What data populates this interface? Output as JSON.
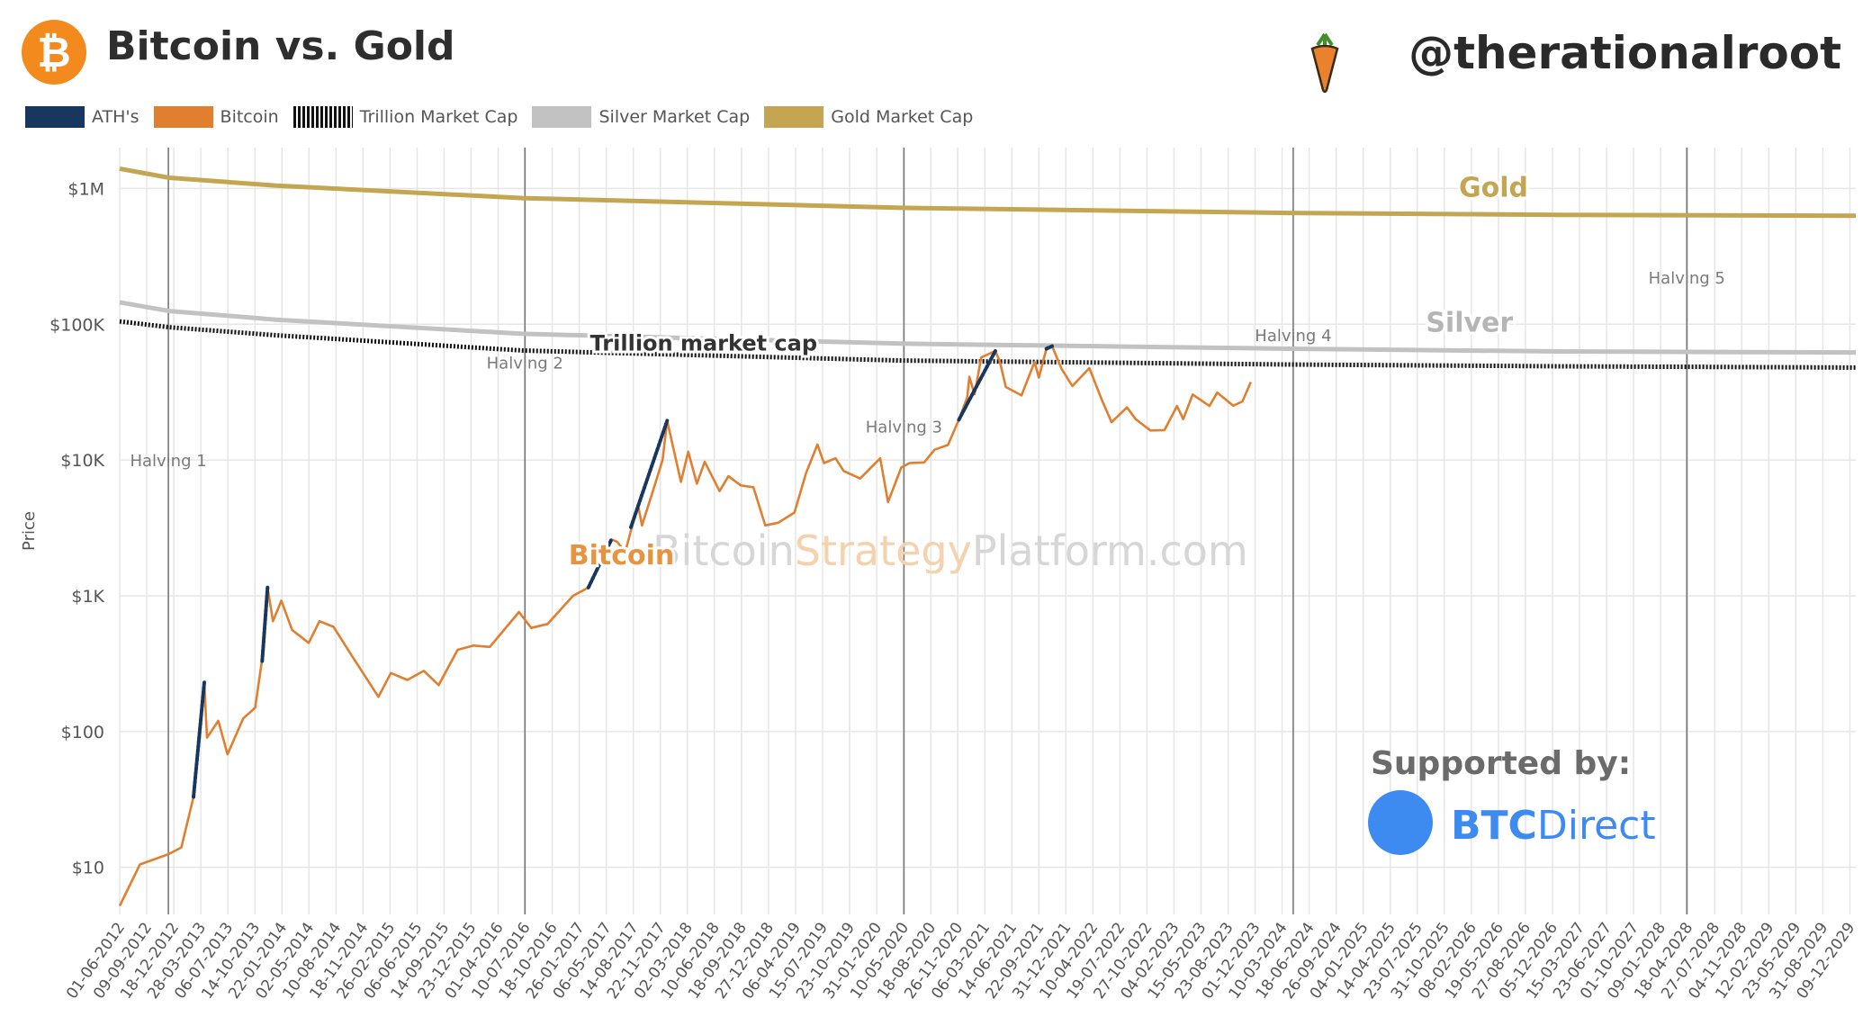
{
  "header": {
    "logo_glyph": "₿",
    "title": "Bitcoin vs. Gold",
    "handle": "@therationalroot",
    "handle_icon": "carrot-icon"
  },
  "legend": [
    {
      "label": "ATH's",
      "color": "#17375e",
      "style": "solid"
    },
    {
      "label": "Bitcoin",
      "color": "#e07f2f",
      "style": "solid"
    },
    {
      "label": "Trillion Market Cap",
      "color": "#111111",
      "style": "dotted"
    },
    {
      "label": "Silver Market Cap",
      "color": "#c2c2c2",
      "style": "solid"
    },
    {
      "label": "Gold Market Cap",
      "color": "#c4a552",
      "style": "solid"
    }
  ],
  "sponsor": {
    "label": "Supported by:",
    "brand_bold": "BTC",
    "brand_rest": "Direct",
    "color": "#3d8af0"
  },
  "chart_data": {
    "type": "line",
    "title": "Bitcoin vs. Gold",
    "ylabel": "Price",
    "yscale": "log",
    "ylim": [
      4.5,
      2000000
    ],
    "xlim": [
      "2012-06-01",
      "2029-12-31"
    ],
    "yticks": [
      10,
      100,
      1000,
      10000,
      100000,
      1000000
    ],
    "ytick_labels": [
      "$10",
      "$100",
      "$1K",
      "$10K",
      "$100K",
      "$1M"
    ],
    "xtick_labels": [
      "01-06-2012",
      "09-09-2012",
      "18-12-2012",
      "28-03-2013",
      "06-07-2013",
      "14-10-2013",
      "22-01-2014",
      "02-05-2014",
      "10-08-2014",
      "18-11-2014",
      "26-02-2015",
      "06-06-2015",
      "14-09-2015",
      "23-12-2015",
      "01-04-2016",
      "10-07-2016",
      "18-10-2016",
      "26-01-2017",
      "06-05-2017",
      "14-08-2017",
      "22-11-2017",
      "02-03-2018",
      "10-06-2018",
      "18-09-2018",
      "27-12-2018",
      "06-04-2019",
      "15-07-2019",
      "23-10-2019",
      "31-01-2020",
      "10-05-2020",
      "18-08-2020",
      "26-11-2020",
      "06-03-2021",
      "14-06-2021",
      "22-09-2021",
      "31-12-2021",
      "10-04-2022",
      "19-07-2022",
      "27-10-2022",
      "04-02-2023",
      "15-05-2023",
      "23-08-2023",
      "01-12-2023",
      "10-03-2024",
      "18-06-2024",
      "26-09-2024",
      "04-01-2025",
      "14-04-2025",
      "23-07-2025",
      "31-10-2025",
      "08-02-2026",
      "19-05-2026",
      "27-08-2026",
      "05-12-2026",
      "15-03-2027",
      "23-06-2027",
      "01-10-2027",
      "09-01-2028",
      "18-04-2028",
      "27-07-2028",
      "04-11-2028",
      "12-02-2029",
      "23-05-2029",
      "31-08-2029",
      "09-12-2029"
    ],
    "grid": true,
    "legend_position": "top-left",
    "halvings": [
      {
        "label": "Halving 1",
        "date": "2012-11-28"
      },
      {
        "label": "Halving 2",
        "date": "2016-07-09"
      },
      {
        "label": "Halving 3",
        "date": "2020-05-11"
      },
      {
        "label": "Halving 4",
        "date": "2024-04-20"
      },
      {
        "label": "Halving 5",
        "date": "2028-04-15"
      }
    ],
    "annotations": [
      {
        "label": "Gold",
        "series": "Gold Market Cap"
      },
      {
        "label": "Silver",
        "series": "Silver Market Cap"
      },
      {
        "label": "Trillion market cap",
        "series": "Trillion Market Cap"
      },
      {
        "label": "Bitcoin",
        "series": "Bitcoin"
      }
    ],
    "watermark": [
      "Bitcoin",
      "Strategy",
      "Platform.com"
    ],
    "series": [
      {
        "name": "Gold Market Cap",
        "color": "#c4a552",
        "x": [
          "2012-06-01",
          "2012-12-01",
          "2014-01-01",
          "2016-07-01",
          "2020-05-01",
          "2024-04-01",
          "2027-01-01",
          "2029-12-31"
        ],
        "y": [
          1400000,
          1200000,
          1050000,
          850000,
          720000,
          660000,
          640000,
          630000
        ]
      },
      {
        "name": "Silver Market Cap",
        "color": "#c2c2c2",
        "x": [
          "2012-06-01",
          "2012-12-01",
          "2014-01-01",
          "2016-07-01",
          "2020-05-01",
          "2024-04-01",
          "2027-01-01",
          "2029-12-31"
        ],
        "y": [
          145000,
          125000,
          108000,
          85000,
          72000,
          66000,
          63000,
          62000
        ]
      },
      {
        "name": "Trillion Market Cap",
        "color": "#111111",
        "x": [
          "2012-06-01",
          "2012-12-01",
          "2014-01-01",
          "2016-07-01",
          "2020-05-01",
          "2024-04-01",
          "2027-01-01",
          "2029-12-31"
        ],
        "y": [
          105000,
          95000,
          83000,
          64000,
          54000,
          50500,
          49000,
          48000
        ]
      },
      {
        "name": "Bitcoin",
        "color": "#e07f2f",
        "x": [
          "2012-06-01",
          "2012-08-15",
          "2012-11-28",
          "2013-01-15",
          "2013-03-01",
          "2013-04-10",
          "2013-04-20",
          "2013-06-01",
          "2013-07-05",
          "2013-09-01",
          "2013-10-15",
          "2013-11-15",
          "2013-11-30",
          "2013-12-20",
          "2014-01-20",
          "2014-03-01",
          "2014-05-01",
          "2014-06-10",
          "2014-08-01",
          "2014-10-01",
          "2015-01-14",
          "2015-03-01",
          "2015-05-01",
          "2015-07-01",
          "2015-08-25",
          "2015-11-03",
          "2016-01-01",
          "2016-03-01",
          "2016-06-17",
          "2016-08-01",
          "2016-10-01",
          "2017-01-03",
          "2017-03-01",
          "2017-05-25",
          "2017-06-15",
          "2017-07-15",
          "2017-08-31",
          "2017-09-15",
          "2017-10-31",
          "2017-11-30",
          "2017-12-17",
          "2018-02-06",
          "2018-03-05",
          "2018-04-06",
          "2018-05-05",
          "2018-06-29",
          "2018-08-01",
          "2018-09-15",
          "2018-11-01",
          "2018-12-15",
          "2019-02-01",
          "2019-04-02",
          "2019-05-15",
          "2019-06-26",
          "2019-07-20",
          "2019-09-01",
          "2019-10-01",
          "2019-12-01",
          "2020-02-13",
          "2020-03-13",
          "2020-05-01",
          "2020-06-01",
          "2020-07-25",
          "2020-09-01",
          "2020-10-21",
          "2020-11-30",
          "2020-12-31",
          "2021-01-08",
          "2021-01-27",
          "2021-02-21",
          "2021-04-14",
          "2021-05-01",
          "2021-05-23",
          "2021-06-22",
          "2021-07-20",
          "2021-09-06",
          "2021-09-22",
          "2021-10-20",
          "2021-11-10",
          "2021-12-15",
          "2022-01-24",
          "2022-03-28",
          "2022-05-12",
          "2022-06-18",
          "2022-08-14",
          "2022-09-15",
          "2022-11-09",
          "2022-12-31",
          "2023-02-15",
          "2023-03-10",
          "2023-04-14",
          "2023-06-15",
          "2023-07-14",
          "2023-09-11",
          "2023-10-15",
          "2023-11-15"
        ],
        "y": [
          5.2,
          10.5,
          12.5,
          14,
          33,
          230,
          90,
          120,
          68,
          125,
          150,
          400,
          1150,
          650,
          920,
          560,
          450,
          650,
          590,
          380,
          180,
          270,
          240,
          280,
          220,
          400,
          430,
          420,
          760,
          580,
          620,
          1000,
          1150,
          2600,
          2500,
          2100,
          4700,
          3300,
          6400,
          10000,
          19500,
          6900,
          11500,
          6700,
          9700,
          5900,
          7600,
          6500,
          6300,
          3300,
          3450,
          4100,
          8000,
          13000,
          9500,
          10300,
          8300,
          7300,
          10300,
          4900,
          8800,
          9500,
          9600,
          11900,
          12900,
          19800,
          29000,
          41000,
          30500,
          57000,
          63500,
          53000,
          34500,
          32000,
          29900,
          52700,
          40500,
          66000,
          69000,
          47000,
          35000,
          47500,
          28000,
          19000,
          24400,
          20000,
          16500,
          16600,
          25000,
          20000,
          30400,
          25000,
          31400,
          25100,
          27000,
          37500
        ]
      },
      {
        "name": "ATH's",
        "color": "#17375e",
        "segments": [
          {
            "x": [
              "2013-03-01",
              "2013-04-10"
            ],
            "y": [
              33,
              230
            ]
          },
          {
            "x": [
              "2013-11-10",
              "2013-11-30"
            ],
            "y": [
              330,
              1150
            ]
          },
          {
            "x": [
              "2017-03-01",
              "2017-05-25"
            ],
            "y": [
              1150,
              2600
            ]
          },
          {
            "x": [
              "2017-08-05",
              "2017-12-17"
            ],
            "y": [
              3200,
              19500
            ]
          },
          {
            "x": [
              "2020-11-30",
              "2021-04-14"
            ],
            "y": [
              19800,
              63500
            ]
          },
          {
            "x": [
              "2021-10-20",
              "2021-11-10"
            ],
            "y": [
              66000,
              69000
            ]
          }
        ]
      }
    ]
  }
}
